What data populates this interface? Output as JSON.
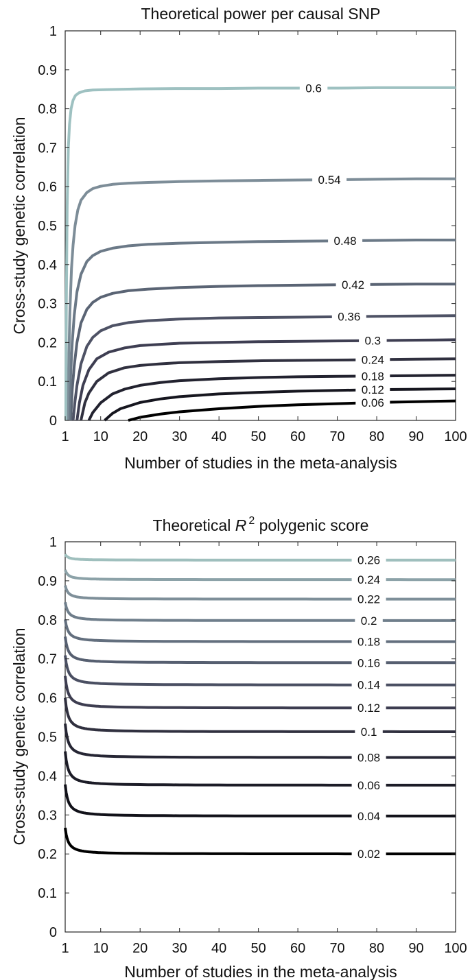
{
  "chart_data": [
    {
      "type": "line",
      "title": "Theoretical power per causal SNP",
      "xlabel": "Number of studies in the meta-analysis",
      "ylabel": "Cross-study genetic correlation",
      "xlim": [
        1,
        100
      ],
      "ylim": [
        0,
        1
      ],
      "xticks": [
        "1",
        "10",
        "20",
        "30",
        "40",
        "50",
        "60",
        "70",
        "80",
        "90",
        "100"
      ],
      "yticks": [
        "0",
        "0.1",
        "0.2",
        "0.3",
        "0.4",
        "0.5",
        "0.6",
        "0.7",
        "0.8",
        "0.9",
        "1"
      ],
      "grid": false,
      "legend": "none",
      "series": [
        {
          "name": "0.06",
          "color": "#000000",
          "x": [
            17,
            20,
            25,
            30,
            40,
            50,
            60,
            70,
            80,
            90,
            100
          ],
          "y": [
            0.0,
            0.008,
            0.016,
            0.022,
            0.03,
            0.036,
            0.04,
            0.043,
            0.046,
            0.048,
            0.05
          ],
          "label_x": 79
        },
        {
          "name": "0.12",
          "color": "#16161f",
          "x": [
            11,
            13,
            15,
            20,
            25,
            30,
            40,
            50,
            60,
            70,
            80,
            90,
            100
          ],
          "y": [
            0.0,
            0.018,
            0.03,
            0.046,
            0.055,
            0.061,
            0.068,
            0.072,
            0.075,
            0.077,
            0.079,
            0.08,
            0.081
          ],
          "label_x": 79
        },
        {
          "name": "0.18",
          "color": "#22222f",
          "x": [
            7,
            8,
            10,
            13,
            16,
            20,
            25,
            30,
            40,
            50,
            60,
            70,
            80,
            90,
            100
          ],
          "y": [
            0.0,
            0.02,
            0.045,
            0.068,
            0.08,
            0.09,
            0.097,
            0.102,
            0.107,
            0.11,
            0.112,
            0.113,
            0.114,
            0.115,
            0.116
          ],
          "label_x": 79
        },
        {
          "name": "0.24",
          "color": "#30303f",
          "x": [
            5,
            6,
            7,
            9,
            12,
            16,
            20,
            25,
            30,
            40,
            50,
            60,
            70,
            80,
            90,
            100
          ],
          "y": [
            0.0,
            0.045,
            0.07,
            0.1,
            0.122,
            0.135,
            0.141,
            0.145,
            0.148,
            0.151,
            0.153,
            0.154,
            0.155,
            0.156,
            0.157,
            0.158
          ],
          "label_x": 79
        },
        {
          "name": "0.3",
          "color": "#3e3e52",
          "x": [
            4,
            4.6,
            5.5,
            7,
            9,
            12,
            16,
            20,
            30,
            40,
            50,
            60,
            70,
            80,
            90,
            100
          ],
          "y": [
            0.0,
            0.045,
            0.09,
            0.13,
            0.158,
            0.175,
            0.186,
            0.192,
            0.198,
            0.2,
            0.202,
            0.203,
            0.204,
            0.205,
            0.206,
            0.207
          ],
          "label_x": 79
        },
        {
          "name": "0.36",
          "color": "#4e5265",
          "x": [
            3,
            3.5,
            4,
            5,
            6.5,
            8,
            10,
            13,
            17,
            22,
            30,
            40,
            50,
            60,
            70,
            80,
            90,
            100
          ],
          "y": [
            0.0,
            0.05,
            0.09,
            0.145,
            0.19,
            0.213,
            0.23,
            0.243,
            0.251,
            0.256,
            0.26,
            0.263,
            0.264,
            0.265,
            0.266,
            0.267,
            0.268,
            0.269
          ],
          "label_x": 73
        },
        {
          "name": "0.42",
          "color": "#5a6474",
          "x": [
            2.4,
            2.8,
            3.3,
            4,
            5,
            6.5,
            8,
            10,
            13,
            17,
            22,
            30,
            40,
            50,
            60,
            70,
            80,
            90,
            100
          ],
          "y": [
            0.0,
            0.08,
            0.14,
            0.2,
            0.25,
            0.285,
            0.303,
            0.316,
            0.326,
            0.333,
            0.337,
            0.341,
            0.344,
            0.346,
            0.347,
            0.348,
            0.349,
            0.35,
            0.35
          ],
          "label_x": 74
        },
        {
          "name": "0.48",
          "color": "#6b7987",
          "x": [
            2,
            2.4,
            2.8,
            3.3,
            4,
            5,
            6.5,
            8,
            10,
            13,
            17,
            22,
            30,
            40,
            50,
            60,
            70,
            80,
            90,
            100
          ],
          "y": [
            0.0,
            0.12,
            0.2,
            0.27,
            0.33,
            0.375,
            0.408,
            0.423,
            0.434,
            0.442,
            0.448,
            0.452,
            0.455,
            0.457,
            0.459,
            0.46,
            0.461,
            0.462,
            0.463,
            0.463
          ],
          "label_x": 72
        },
        {
          "name": "0.54",
          "color": "#7d8d98",
          "x": [
            1.6,
            1.9,
            2.2,
            2.6,
            3,
            3.5,
            4.2,
            5,
            6.5,
            8,
            10,
            13,
            17,
            22,
            30,
            40,
            50,
            60,
            70,
            80,
            90,
            100
          ],
          "y": [
            0.0,
            0.15,
            0.28,
            0.39,
            0.45,
            0.5,
            0.54,
            0.565,
            0.585,
            0.595,
            0.601,
            0.606,
            0.609,
            0.611,
            0.613,
            0.615,
            0.616,
            0.617,
            0.618,
            0.619,
            0.62,
            0.62
          ],
          "label_x": 68
        },
        {
          "name": "0.6",
          "color": "#9ec1c1",
          "x": [
            1.15,
            1.3,
            1.5,
            1.8,
            2.1,
            2.5,
            3,
            3.6,
            4.5,
            6,
            8,
            11,
            15,
            20,
            30,
            40,
            50,
            60,
            70,
            80,
            90,
            100
          ],
          "y": [
            0.0,
            0.3,
            0.55,
            0.7,
            0.76,
            0.8,
            0.822,
            0.834,
            0.841,
            0.846,
            0.848,
            0.849,
            0.85,
            0.851,
            0.852,
            0.852,
            0.853,
            0.853,
            0.853,
            0.854,
            0.854,
            0.854
          ],
          "label_x": 64
        }
      ]
    },
    {
      "type": "line",
      "title": "Theoretical R 2 polygenic score",
      "title_parts": {
        "before": "Theoretical ",
        "italic": "R",
        "sup": "2",
        "after": " polygenic score"
      },
      "xlabel": "Number of studies in the meta-analysis",
      "ylabel": "Cross-study genetic correlation",
      "xlim": [
        1,
        100
      ],
      "ylim": [
        0,
        1
      ],
      "xticks": [
        "1",
        "10",
        "20",
        "30",
        "40",
        "50",
        "60",
        "70",
        "80",
        "90",
        "100"
      ],
      "yticks": [
        "0",
        "0.1",
        "0.2",
        "0.3",
        "0.4",
        "0.5",
        "0.6",
        "0.7",
        "0.8",
        "0.9",
        "1"
      ],
      "grid": false,
      "legend": "none",
      "series": [
        {
          "name": "0.02",
          "color": "#000000",
          "start": 0.267,
          "end": 0.2,
          "label_x": 78
        },
        {
          "name": "0.04",
          "color": "#111119",
          "start": 0.378,
          "end": 0.297,
          "label_x": 78
        },
        {
          "name": "0.06",
          "color": "#1c1c27",
          "start": 0.463,
          "end": 0.376,
          "label_x": 78
        },
        {
          "name": "0.08",
          "color": "#262634",
          "start": 0.534,
          "end": 0.447,
          "label_x": 78
        },
        {
          "name": "0.1",
          "color": "#30303f",
          "start": 0.6,
          "end": 0.513,
          "label_x": 78
        },
        {
          "name": "0.12",
          "color": "#3d3d50",
          "start": 0.656,
          "end": 0.574,
          "label_x": 78
        },
        {
          "name": "0.14",
          "color": "#4a4f62",
          "start": 0.709,
          "end": 0.633,
          "label_x": 78
        },
        {
          "name": "0.16",
          "color": "#565f70",
          "start": 0.757,
          "end": 0.69,
          "label_x": 78
        },
        {
          "name": "0.18",
          "color": "#636f7e",
          "start": 0.801,
          "end": 0.744,
          "label_x": 78
        },
        {
          "name": "0.2",
          "color": "#6f7e8b",
          "start": 0.845,
          "end": 0.798,
          "label_x": 78
        },
        {
          "name": "0.22",
          "color": "#7e8f99",
          "start": 0.888,
          "end": 0.853,
          "label_x": 78
        },
        {
          "name": "0.24",
          "color": "#8ca2a8",
          "start": 0.928,
          "end": 0.903,
          "label_x": 78
        },
        {
          "name": "0.26",
          "color": "#9fbfbd",
          "start": 0.968,
          "end": 0.953,
          "label_x": 78
        }
      ]
    }
  ]
}
